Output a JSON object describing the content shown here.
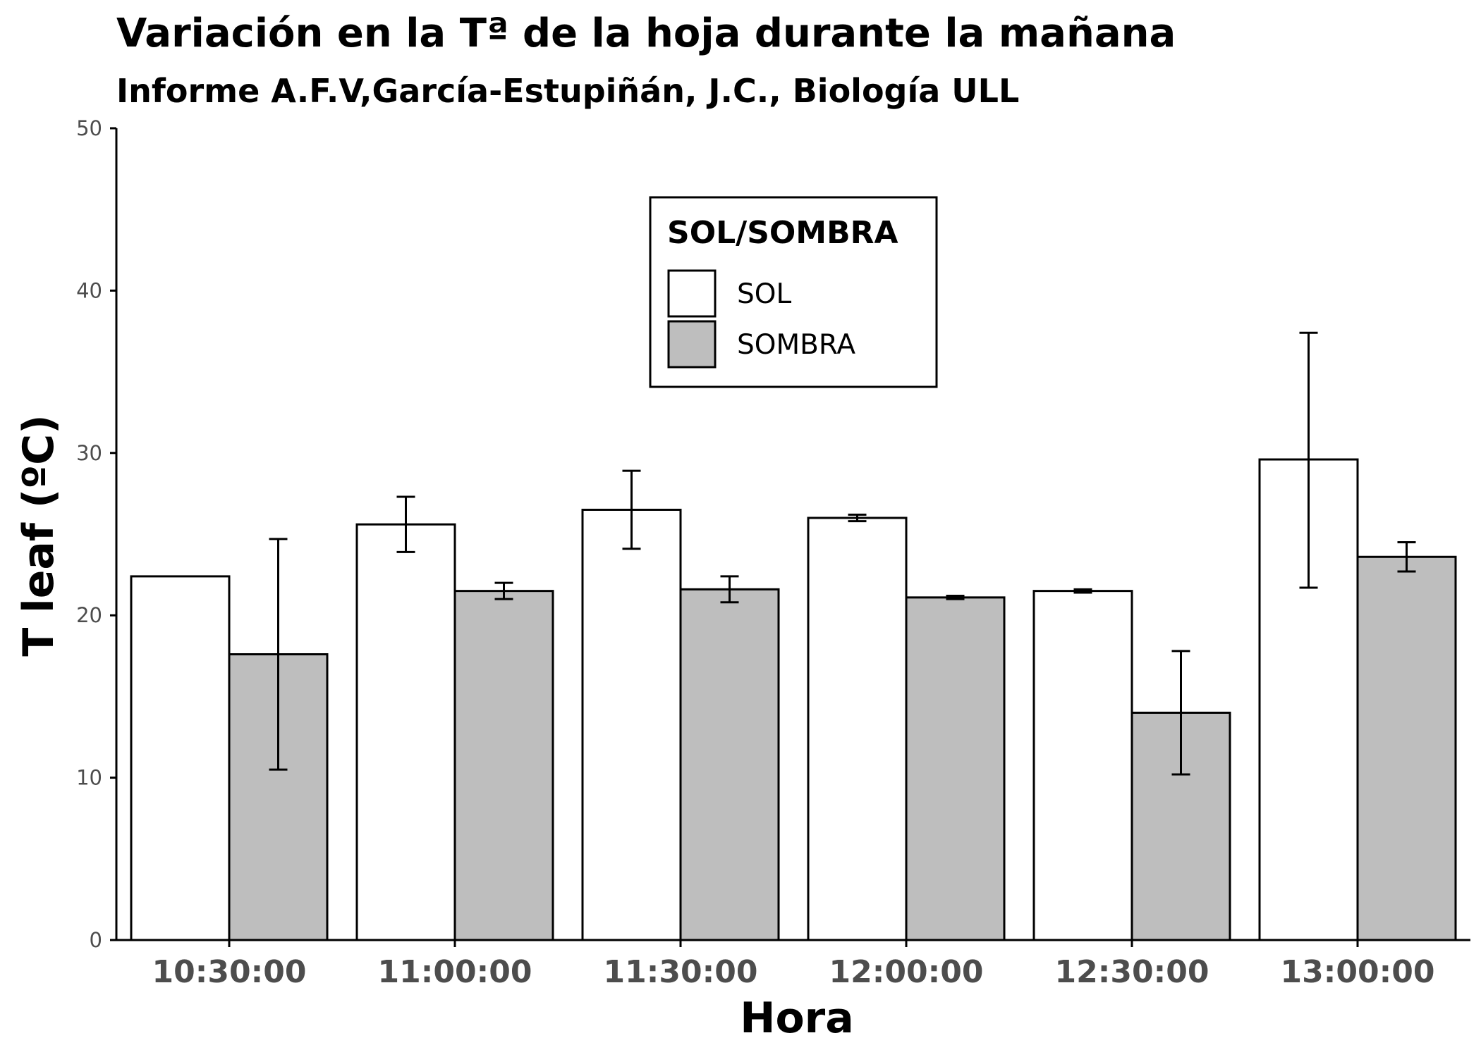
{
  "chart_data": {
    "type": "bar",
    "title": "Variación en la Tª de la hoja durante la mañana",
    "subtitle": "Informe A.F.V,García-Estupiñán, J.C., Biología ULL",
    "xlabel": "Hora",
    "ylabel": "T leaf (ºC)",
    "ylim": [
      0,
      50
    ],
    "yticks": [
      0,
      10,
      20,
      30,
      40,
      50
    ],
    "categories": [
      "10:30:00",
      "11:00:00",
      "11:30:00",
      "12:00:00",
      "12:30:00",
      "13:00:00"
    ],
    "legend": {
      "title": "SOL/SOMBRA",
      "position": "top-center"
    },
    "grid": false,
    "series": [
      {
        "name": "SOL",
        "color": "#ffffff",
        "values": [
          22.4,
          25.6,
          26.5,
          26.0,
          21.5,
          29.6
        ],
        "error_low": [
          null,
          23.9,
          24.1,
          25.8,
          21.4,
          21.7
        ],
        "error_high": [
          null,
          27.3,
          28.9,
          26.2,
          21.6,
          37.4
        ]
      },
      {
        "name": "SOMBRA",
        "color": "#bebebe",
        "values": [
          17.6,
          21.5,
          21.6,
          21.1,
          14.0,
          23.6
        ],
        "error_low": [
          10.5,
          21.0,
          20.8,
          21.0,
          10.2,
          22.7
        ],
        "error_high": [
          24.7,
          22.0,
          22.4,
          21.2,
          17.8,
          24.5
        ]
      }
    ]
  }
}
